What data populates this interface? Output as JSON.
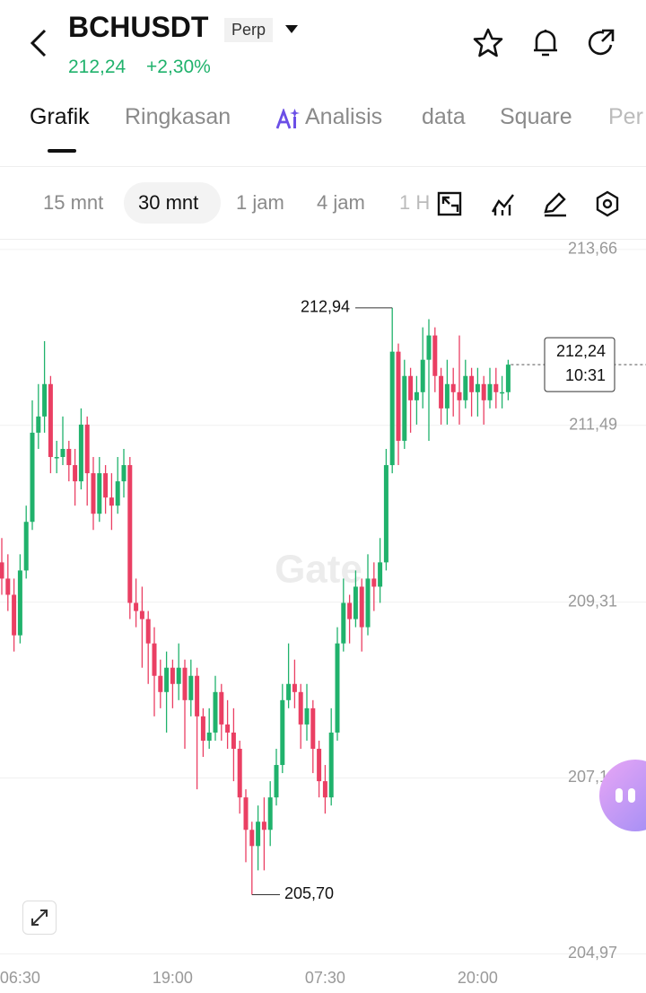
{
  "header": {
    "symbol": "BCHUSDT",
    "badge": "Perp",
    "price": "212,24",
    "change": "+2,30%"
  },
  "tabs": [
    "Grafik",
    "Ringkasan",
    "Analisis",
    "data",
    "Square",
    "Per"
  ],
  "intervals": [
    "15 mnt",
    "30 mnt",
    "1 jam",
    "4 jam",
    "1 H"
  ],
  "watermark": "Gate",
  "chart_data": {
    "type": "candlestick",
    "categories": [
      null,
      null,
      null,
      "06:30",
      null,
      null,
      null,
      null,
      null,
      null,
      null,
      null,
      null,
      null,
      null,
      null,
      null,
      null,
      null,
      null,
      null,
      null,
      null,
      null,
      null,
      null,
      null,
      null,
      "19:00",
      null,
      null,
      null,
      null,
      null,
      null,
      null,
      null,
      null,
      null,
      null,
      null,
      null,
      null,
      null,
      null,
      null,
      null,
      null,
      null,
      null,
      null,
      null,
      null,
      "07:30",
      null,
      null,
      null,
      null,
      null,
      null,
      null,
      null,
      null,
      null,
      null,
      null,
      null,
      null,
      null,
      null,
      null,
      null,
      null,
      null,
      null,
      null,
      null,
      null,
      "20:00",
      null,
      null,
      null,
      null,
      null
    ],
    "open": [
      209.8,
      209.6,
      209.4,
      208.9,
      209.7,
      210.3,
      211.4,
      211.6,
      212.0,
      211.1,
      211.1,
      211.2,
      211.0,
      210.8,
      211.5,
      210.9,
      210.4,
      210.9,
      210.6,
      210.5,
      210.8,
      211.0,
      209.3,
      209.2,
      209.1,
      208.8,
      208.4,
      208.2,
      208.5,
      208.3,
      208.5,
      208.1,
      208.4,
      207.9,
      207.6,
      207.7,
      208.2,
      207.8,
      207.7,
      207.5,
      206.9,
      206.5,
      206.3,
      206.6,
      206.5,
      206.9,
      207.3,
      208.1,
      208.3,
      208.2,
      207.8,
      208.0,
      207.5,
      207.1,
      206.9,
      207.7,
      208.8,
      209.3,
      209.1,
      209.5,
      209.0,
      209.6,
      209.5,
      209.8,
      211.0,
      212.4,
      211.3,
      212.1,
      211.8,
      211.9,
      212.3,
      212.6,
      212.1,
      211.7,
      212.0,
      211.9,
      211.8,
      212.1,
      211.9,
      212.0,
      211.8,
      212.0,
      211.9,
      211.9
    ],
    "high": [
      210.1,
      209.9,
      209.6,
      209.9,
      210.5,
      211.8,
      212.0,
      212.53,
      212.1,
      211.3,
      211.6,
      211.3,
      211.2,
      211.7,
      211.6,
      211.1,
      211.1,
      211.0,
      210.9,
      211.1,
      211.2,
      211.1,
      209.6,
      209.5,
      209.2,
      209.0,
      208.6,
      208.7,
      208.6,
      208.8,
      208.6,
      208.6,
      208.5,
      208.0,
      208.0,
      208.4,
      208.3,
      208.1,
      208.0,
      207.6,
      207.0,
      206.6,
      206.8,
      206.9,
      207.1,
      207.5,
      208.3,
      208.8,
      208.6,
      208.3,
      208.3,
      208.1,
      207.6,
      207.3,
      208.0,
      209.0,
      209.6,
      209.4,
      209.7,
      209.6,
      209.9,
      209.8,
      210.1,
      211.2,
      212.94,
      212.5,
      212.3,
      212.2,
      212.1,
      212.7,
      212.8,
      212.7,
      212.2,
      212.3,
      212.2,
      212.6,
      212.3,
      212.2,
      212.2,
      212.1,
      212.2,
      212.2,
      212.1,
      212.3
    ],
    "low": [
      209.4,
      209.2,
      208.7,
      208.8,
      209.6,
      210.2,
      211.2,
      211.4,
      210.9,
      210.9,
      211.0,
      210.8,
      210.5,
      210.7,
      210.5,
      210.2,
      210.3,
      210.4,
      210.2,
      210.4,
      210.6,
      209.1,
      209.0,
      208.5,
      208.3,
      207.9,
      208.0,
      207.7,
      208.0,
      208.1,
      207.5,
      207.9,
      207.0,
      207.4,
      207.5,
      207.6,
      207.6,
      207.5,
      207.1,
      206.7,
      206.1,
      205.7,
      206.0,
      206.0,
      206.3,
      206.8,
      207.2,
      208.0,
      208.0,
      207.5,
      207.6,
      207.2,
      206.9,
      206.7,
      206.8,
      207.6,
      208.7,
      208.8,
      209.0,
      208.7,
      208.9,
      209.2,
      209.3,
      209.7,
      210.9,
      211.0,
      211.2,
      211.4,
      211.5,
      211.7,
      211.3,
      211.9,
      211.5,
      211.5,
      211.6,
      211.5,
      211.7,
      211.6,
      211.6,
      211.5,
      211.7,
      211.7,
      211.7,
      211.8
    ],
    "close": [
      209.6,
      209.4,
      208.9,
      209.7,
      210.3,
      211.4,
      211.6,
      212.0,
      211.1,
      211.1,
      211.2,
      211.0,
      210.8,
      211.5,
      210.9,
      210.4,
      210.9,
      210.6,
      210.5,
      210.8,
      211.0,
      209.3,
      209.2,
      209.1,
      208.8,
      208.4,
      208.2,
      208.5,
      208.3,
      208.5,
      208.1,
      208.4,
      207.9,
      207.6,
      207.7,
      208.2,
      207.8,
      207.7,
      207.5,
      206.9,
      206.5,
      206.3,
      206.6,
      206.5,
      206.9,
      207.3,
      208.1,
      208.3,
      208.2,
      207.8,
      208.0,
      207.5,
      207.1,
      206.9,
      207.7,
      208.8,
      209.3,
      209.1,
      209.5,
      209.0,
      209.6,
      209.5,
      209.8,
      211.0,
      212.4,
      211.3,
      212.1,
      211.8,
      211.9,
      212.3,
      212.6,
      212.1,
      211.7,
      212.0,
      211.9,
      211.8,
      212.1,
      211.9,
      212.0,
      211.8,
      212.0,
      211.9,
      211.9,
      212.24
    ],
    "up_color": "#20b26c",
    "down_color": "#ea3f63",
    "ylim": [
      204.83,
      213.77
    ],
    "yticks": [
      {
        "value": 213.66,
        "label": "213,66"
      },
      {
        "value": 211.49,
        "label": "211,49"
      },
      {
        "value": 209.31,
        "label": "209,31"
      },
      {
        "value": 207.14,
        "label": "207,14"
      },
      {
        "value": 204.97,
        "label": "204,97"
      }
    ],
    "grid": true,
    "high_label": {
      "value": 212.94,
      "label": "212,94"
    },
    "low_label": {
      "value": 205.7,
      "label": "205,70"
    },
    "last_price": {
      "value": 212.24,
      "label": "212,24"
    },
    "countdown": "10:31"
  }
}
